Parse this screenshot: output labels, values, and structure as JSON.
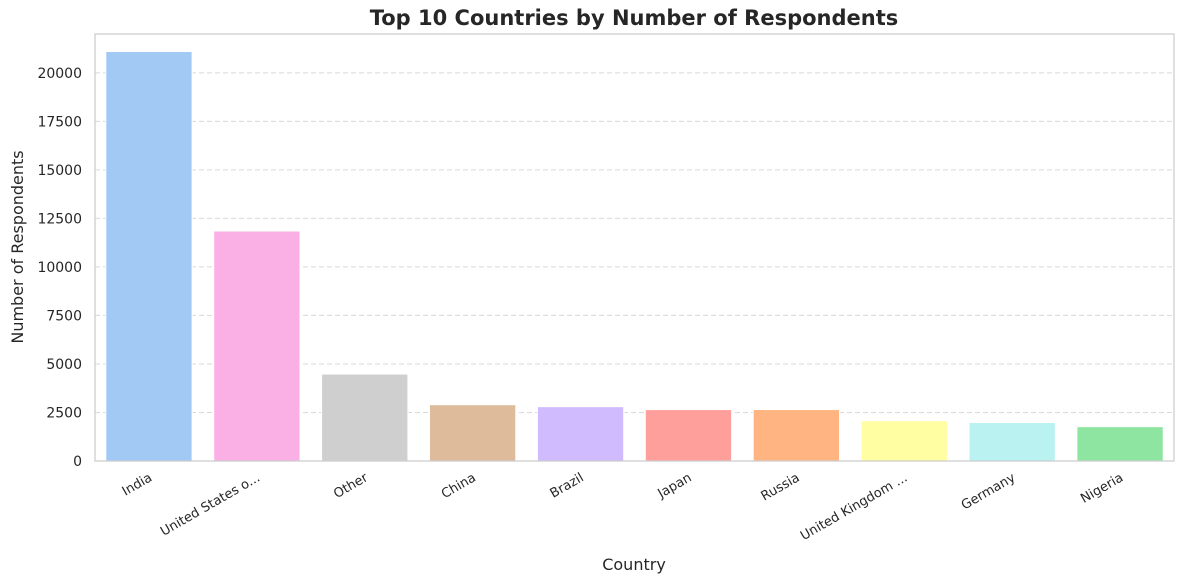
{
  "chart_data": {
    "type": "bar",
    "title": "Top 10 Countries by Number of Respondents",
    "xlabel": "Country",
    "ylabel": "Number of Respondents",
    "categories": [
      "India",
      "United States o...",
      "Other",
      "China",
      "Brazil",
      "Japan",
      "Russia",
      "United Kingdom ...",
      "Germany",
      "Nigeria"
    ],
    "values": [
      21100,
      11850,
      4480,
      2900,
      2800,
      2650,
      2650,
      2080,
      1980,
      1770
    ],
    "colors": [
      "#a1c9f4",
      "#fab0e4",
      "#cfcfcf",
      "#debb9b",
      "#d0bbff",
      "#ff9f9b",
      "#ffb482",
      "#fffea3",
      "#b9f2f0",
      "#8de5a1"
    ],
    "ylim": [
      0,
      22000
    ],
    "yticks": [
      0,
      2500,
      5000,
      7500,
      10000,
      12500,
      15000,
      17500,
      20000
    ],
    "grid": "y-dashed"
  }
}
